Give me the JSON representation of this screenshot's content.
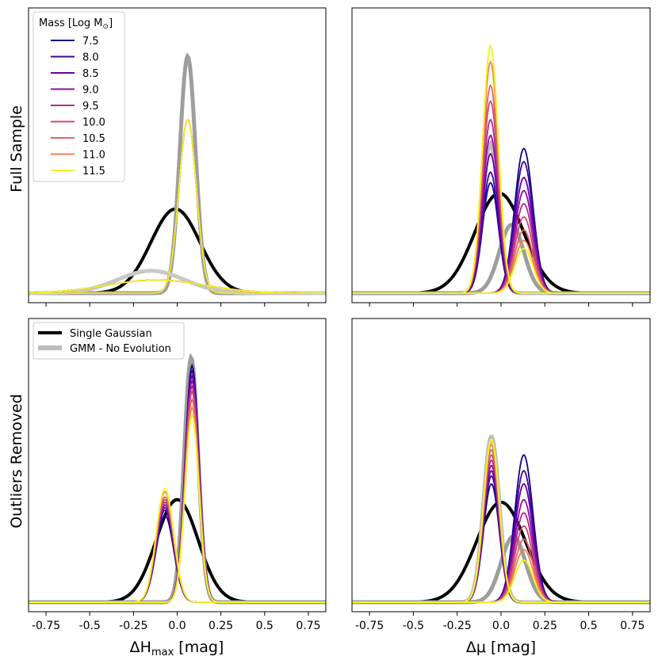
{
  "chart_data": {
    "type": "line",
    "row_labels": [
      "Full Sample",
      "Outliers Removed"
    ],
    "xlabels": [
      "ΔH",
      "max",
      " [mag]",
      "Δμ [mag]"
    ],
    "xlim": [
      -0.85,
      0.85
    ],
    "xticks": [
      -0.75,
      -0.5,
      -0.25,
      0.0,
      0.25,
      0.5,
      0.75
    ],
    "xtick_labels": [
      "-0.75",
      "-0.5",
      "-0.25",
      "0.0",
      "0.25",
      "0.5",
      "0.75"
    ],
    "mass_legend": {
      "title": "Mass [Log M",
      "title_sub": "⊙",
      "title_end": "]",
      "entries": [
        "7.5",
        "8.0",
        "8.5",
        "9.0",
        "9.5",
        "10.0",
        "10.5",
        "11.0",
        "11.5"
      ],
      "colors": [
        "#0d0887",
        "#41049d",
        "#6a00a8",
        "#8f0da4",
        "#b12a90",
        "#cc4778",
        "#e16462",
        "#f2844b",
        "#fca636"
      ]
    },
    "model_legend": {
      "entries": [
        "Single Gaussian",
        "GMM - No Evolution"
      ],
      "colors": [
        "#000000",
        "#bdbdbd"
      ]
    },
    "panels": [
      {
        "name": "Full Sample – ΔHmax",
        "ylim": [
          0,
          1.0
        ],
        "single_gaussian": {
          "mu": -0.01,
          "sigma": 0.14,
          "amp": 0.32
        },
        "gmm_no_evolution": [
          {
            "mu": 0.06,
            "sigma": 0.045,
            "amp": 0.9,
            "color": "#9e9e9e"
          },
          {
            "mu": -0.15,
            "sigma": 0.19,
            "amp": 0.085,
            "color": "#c8c8c8"
          }
        ],
        "mass_curves": [
          {
            "mu": 0.06,
            "sigma": 0.05,
            "amp": 0.66
          },
          {
            "mu": -0.12,
            "sigma": 0.28,
            "amp": 0.05
          }
        ]
      },
      {
        "name": "Full Sample – Δμ",
        "ylim": [
          0,
          1.0
        ],
        "single_gaussian": {
          "mu": -0.01,
          "sigma": 0.14,
          "amp": 0.38
        },
        "gmm_no_evolution": [
          {
            "mu": -0.06,
            "sigma": 0.045,
            "amp": 0.57,
            "color": "#bdbdbd"
          },
          {
            "mu": 0.06,
            "sigma": 0.07,
            "amp": 0.26,
            "color": "#9e9e9e"
          }
        ],
        "mass_curves": {
          "left": {
            "mu": -0.06,
            "sigma": 0.045,
            "amps": [
              0.42,
              0.46,
              0.53,
              0.6,
              0.66,
              0.73,
              0.79,
              0.88,
              0.94
            ]
          },
          "right": {
            "mu": 0.13,
            "sigma": 0.052,
            "amps": [
              0.55,
              0.5,
              0.44,
              0.39,
              0.34,
              0.29,
              0.24,
              0.2,
              0.17
            ]
          }
        }
      },
      {
        "name": "Outliers Removed – ΔHmax",
        "ylim": [
          0,
          1.0
        ],
        "single_gaussian": {
          "mu": 0.0,
          "sigma": 0.12,
          "amp": 0.39
        },
        "gmm_no_evolution": [
          {
            "mu": 0.08,
            "sigma": 0.04,
            "amp": 0.93,
            "color": "#9e9e9e"
          }
        ],
        "mass_curves": {
          "left": {
            "mu": -0.07,
            "sigma": 0.05,
            "amps": [
              0.33,
              0.35,
              0.36,
              0.37,
              0.38,
              0.39,
              0.4,
              0.42,
              0.43
            ]
          },
          "right": {
            "mu": 0.085,
            "sigma": 0.04,
            "amps": [
              0.9,
              0.88,
              0.86,
              0.84,
              0.82,
              0.8,
              0.77,
              0.74,
              0.71
            ]
          }
        }
      },
      {
        "name": "Outliers Removed – Δμ",
        "ylim": [
          0,
          1.0
        ],
        "single_gaussian": {
          "mu": 0.0,
          "sigma": 0.14,
          "amp": 0.38
        },
        "gmm_no_evolution": [
          {
            "mu": -0.055,
            "sigma": 0.045,
            "amp": 0.63,
            "color": "#bdbdbd"
          },
          {
            "mu": 0.07,
            "sigma": 0.07,
            "amp": 0.25,
            "color": "#9e9e9e"
          }
        ],
        "mass_curves": {
          "left": {
            "mu": -0.055,
            "sigma": 0.045,
            "amps": [
              0.45,
              0.48,
              0.5,
              0.52,
              0.54,
              0.56,
              0.58,
              0.6,
              0.62
            ]
          },
          "right": {
            "mu": 0.13,
            "sigma": 0.052,
            "amps": [
              0.56,
              0.5,
              0.45,
              0.39,
              0.34,
              0.29,
              0.24,
              0.2,
              0.16
            ]
          }
        }
      }
    ]
  }
}
